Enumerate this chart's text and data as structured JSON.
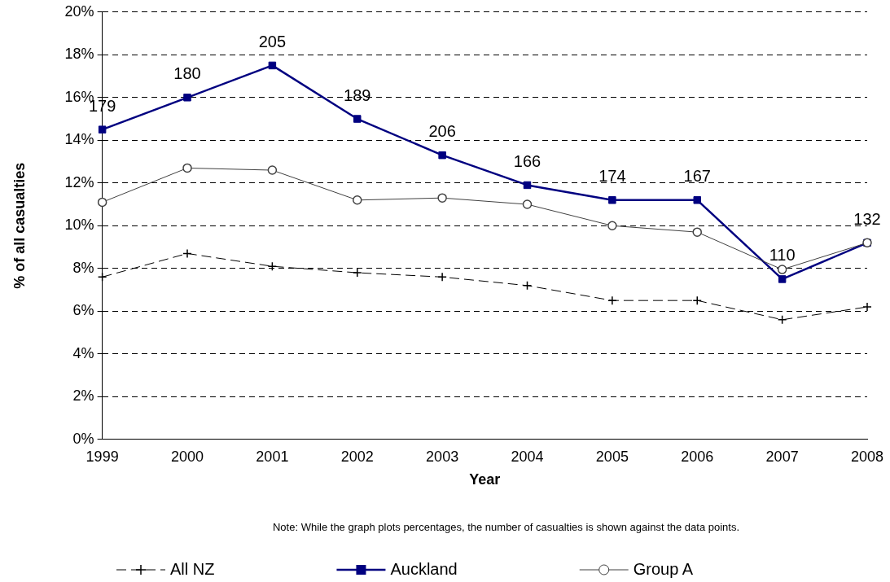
{
  "chart_data": {
    "type": "line",
    "xlabel": "Year",
    "ylabel": "% of all casualties",
    "categories": [
      "1999",
      "2000",
      "2001",
      "2002",
      "2003",
      "2004",
      "2005",
      "2006",
      "2007",
      "2008"
    ],
    "series": [
      {
        "name": "All NZ",
        "color": "#000000",
        "marker": "cross",
        "line_style": "dashed",
        "values": [
          7.6,
          8.7,
          8.1,
          7.8,
          7.6,
          7.2,
          6.5,
          6.5,
          5.6,
          6.2
        ]
      },
      {
        "name": "Auckland",
        "color": "#000080",
        "marker": "square",
        "line_style": "solid",
        "values": [
          14.5,
          16.0,
          17.5,
          15.0,
          13.3,
          11.9,
          11.2,
          11.2,
          7.5,
          9.2
        ]
      },
      {
        "name": "Group A",
        "color": "#404040",
        "marker": "circle",
        "line_style": "solid",
        "values": [
          11.1,
          12.7,
          12.6,
          11.2,
          11.3,
          11.0,
          10.0,
          9.7,
          7.95,
          9.2
        ]
      }
    ],
    "ylim": [
      0,
      20
    ],
    "yticks": [
      {
        "value": 0,
        "label": "0%"
      },
      {
        "value": 2,
        "label": "2%"
      },
      {
        "value": 4,
        "label": "4%"
      },
      {
        "value": 6,
        "label": "6%"
      },
      {
        "value": 8,
        "label": "8%"
      },
      {
        "value": 10,
        "label": "10%"
      },
      {
        "value": 12,
        "label": "12%"
      },
      {
        "value": 14,
        "label": "14%"
      },
      {
        "value": 16,
        "label": "16%"
      },
      {
        "value": 18,
        "label": "18%"
      },
      {
        "value": 20,
        "label": "20%"
      }
    ],
    "grid": "y",
    "legend": "bottom",
    "annotations": [
      "Note:  While the graph plots percentages, the number of casualties is shown against the data points.",
      {
        "text": "179",
        "x": "1999",
        "y": 14.5
      },
      {
        "text": "180",
        "x": "2000",
        "y": 16.0
      },
      {
        "text": "205",
        "x": "2001",
        "y": 17.5
      },
      {
        "text": "189",
        "x": "2002",
        "y": 15.0
      },
      {
        "text": "206",
        "x": "2003",
        "y": 13.3
      },
      {
        "text": "166",
        "x": "2004",
        "y": 11.9
      },
      {
        "text": "174",
        "x": "2005",
        "y": 11.2
      },
      {
        "text": "167",
        "x": "2006",
        "y": 11.2
      },
      {
        "text": "110",
        "x": "2007",
        "y": 7.5
      },
      {
        "text": "132",
        "x": "2008",
        "y": 9.2
      }
    ]
  }
}
